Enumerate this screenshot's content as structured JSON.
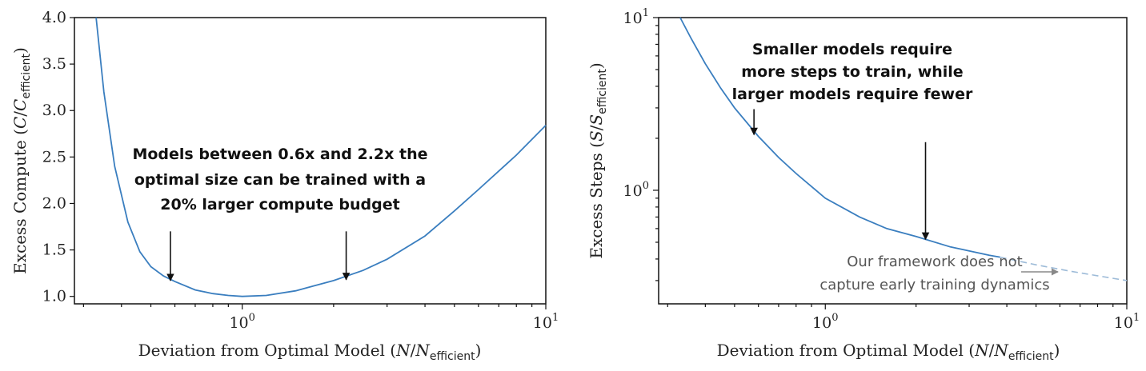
{
  "chart_data": [
    {
      "type": "line",
      "xscale": "log",
      "xlim": [
        0.28,
        10
      ],
      "ylim": [
        0.92,
        4.0
      ],
      "xticks": [
        {
          "value": 1,
          "mantissa": "10",
          "exp": "0"
        },
        {
          "value": 10,
          "mantissa": "10",
          "exp": "1"
        }
      ],
      "yticks": [
        "1.0",
        "1.5",
        "2.0",
        "2.5",
        "3.0",
        "3.5",
        "4.0"
      ],
      "xlabel": {
        "pre": "Deviation from Optimal Model (",
        "var": "N",
        "slash": "/",
        "sub_var": "N",
        "sub": "efficient",
        "post": ")"
      },
      "ylabel": {
        "pre": "Excess Compute (",
        "var": "C",
        "slash": "/",
        "sub_var": "C",
        "sub": "efficient",
        "post": ")"
      },
      "series": [
        {
          "color": "#3a7ebf",
          "x": [
            0.33,
            0.35,
            0.38,
            0.42,
            0.46,
            0.5,
            0.55,
            0.6,
            0.7,
            0.8,
            0.9,
            1.0,
            1.2,
            1.5,
            2.0,
            2.5,
            3.0,
            4.0,
            5.0,
            6.0,
            8.0,
            10.0
          ],
          "y": [
            4.0,
            3.2,
            2.4,
            1.8,
            1.48,
            1.32,
            1.22,
            1.16,
            1.07,
            1.03,
            1.01,
            1.0,
            1.01,
            1.06,
            1.17,
            1.28,
            1.4,
            1.65,
            1.92,
            2.15,
            2.52,
            2.84
          ]
        }
      ],
      "annotations": {
        "lines": [
          "Models between 0.6x and 2.2x the",
          "optimal size can be trained with a",
          "20% larger compute budget"
        ],
        "arrows": [
          {
            "x": 0.58,
            "y_from": 1.7,
            "y_to": 1.17
          },
          {
            "x": 2.2,
            "y_from": 1.7,
            "y_to": 1.18
          }
        ]
      }
    },
    {
      "type": "line",
      "xscale": "log",
      "yscale": "log",
      "xlim": [
        0.28,
        10
      ],
      "ylim": [
        0.22,
        10
      ],
      "xticks": [
        {
          "value": 1,
          "mantissa": "10",
          "exp": "0"
        },
        {
          "value": 10,
          "mantissa": "10",
          "exp": "1"
        }
      ],
      "yticks": [
        {
          "value": 1,
          "mantissa": "10",
          "exp": "0"
        },
        {
          "value": 10,
          "mantissa": "10",
          "exp": "1"
        }
      ],
      "xlabel": {
        "pre": "Deviation from Optimal Model (",
        "var": "N",
        "slash": "/",
        "sub_var": "N",
        "sub": "efficient",
        "post": ")"
      },
      "ylabel": {
        "pre": "Excess Steps (",
        "var": "S",
        "slash": "/",
        "sub_var": "S",
        "sub": "efficient",
        "post": ")"
      },
      "series": [
        {
          "color": "#3a7ebf",
          "style": "solid",
          "x": [
            0.33,
            0.36,
            0.4,
            0.45,
            0.5,
            0.6,
            0.7,
            0.8,
            1.0,
            1.3,
            1.6,
            2.0,
            2.6,
            3.5,
            3.8
          ],
          "y": [
            10.0,
            7.5,
            5.4,
            3.9,
            3.0,
            2.05,
            1.55,
            1.25,
            0.9,
            0.7,
            0.6,
            0.54,
            0.47,
            0.42,
            0.41
          ]
        },
        {
          "color": "#9dbbd8",
          "style": "dashed",
          "x": [
            3.8,
            5.0,
            6.5,
            8.0,
            10.0
          ],
          "y": [
            0.41,
            0.37,
            0.34,
            0.32,
            0.3
          ]
        }
      ],
      "annotations": {
        "lines": [
          "Smaller models require",
          "more steps to train, while",
          "larger models require fewer"
        ],
        "arrows": [
          {
            "x": 0.58,
            "y_from": 2.95,
            "y_to": 2.1
          },
          {
            "x": 2.15,
            "y_from": 1.9,
            "y_to": 0.52
          }
        ],
        "note_lines": [
          "Our framework does not",
          "capture early training dynamics"
        ]
      }
    }
  ]
}
